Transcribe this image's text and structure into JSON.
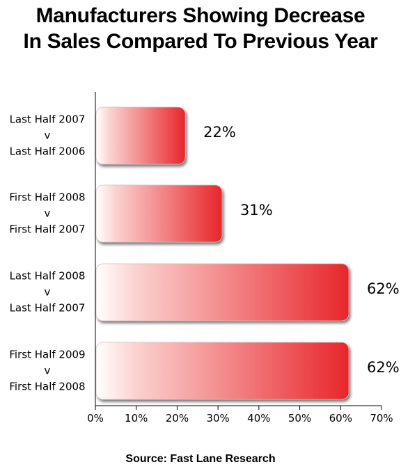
{
  "chart_data": {
    "type": "bar",
    "orientation": "horizontal",
    "title_lines": [
      "Manufacturers Showing Decrease",
      "In Sales Compared To Previous Year"
    ],
    "categories": [
      [
        "Last Half 2007",
        "v",
        "Last Half 2006"
      ],
      [
        "First Half 2008",
        "v",
        "First Half 2007"
      ],
      [
        "Last Half 2008",
        "v",
        "Last Half 2007"
      ],
      [
        "First Half 2009",
        "v",
        "First Half 2008"
      ]
    ],
    "values": [
      22,
      31,
      62,
      62
    ],
    "value_labels": [
      "22%",
      "31%",
      "62%",
      "62%"
    ],
    "xlim": [
      0,
      70
    ],
    "x_ticks": [
      0,
      10,
      20,
      30,
      40,
      50,
      60,
      70
    ],
    "x_tick_labels": [
      "0%",
      "10%",
      "20%",
      "30%",
      "40%",
      "50%",
      "60%",
      "70%"
    ],
    "bar_color": "#e8262b",
    "bar_highlight_color": "#ffffff",
    "source": "Source: Fast Lane Research"
  }
}
